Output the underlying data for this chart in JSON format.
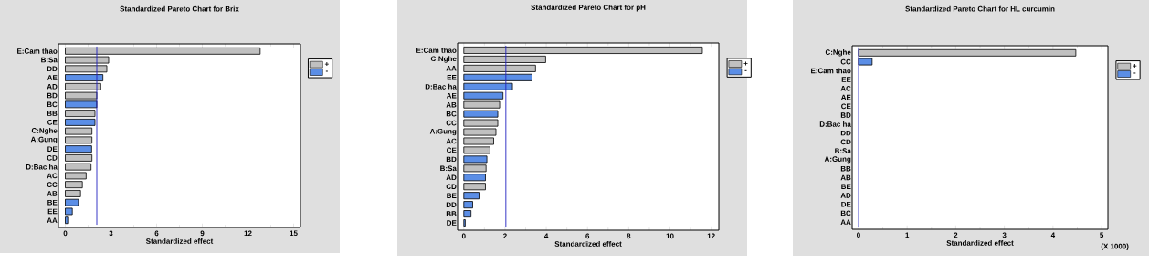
{
  "chart_data": [
    {
      "type": "bar",
      "orientation": "horizontal",
      "title": "Standardized Pareto Chart for Brix",
      "xlabel": "Standardized effect",
      "categories": [
        "E:Cam thao",
        "B:Sa",
        "DD",
        "AE",
        "AD",
        "BD",
        "BC",
        "BB",
        "CE",
        "C:Nghe",
        "A:Gung",
        "DE",
        "CD",
        "D:Bac ha",
        "AC",
        "CC",
        "AB",
        "BE",
        "EE",
        "AA"
      ],
      "series": [
        {
          "name": "+",
          "color": "#c0c0c0",
          "values": [
            12.8,
            2.85,
            2.73,
            null,
            2.33,
            2.07,
            null,
            1.95,
            null,
            1.75,
            1.75,
            null,
            1.75,
            1.69,
            1.37,
            1.12,
            1.0,
            null,
            null,
            null
          ]
        },
        {
          "name": "-",
          "color": "#5b8ee6",
          "values": [
            null,
            null,
            null,
            2.47,
            null,
            null,
            2.07,
            null,
            1.95,
            null,
            null,
            1.73,
            null,
            null,
            null,
            null,
            null,
            0.86,
            0.46,
            0.16
          ]
        }
      ],
      "xlim": [
        -0.45,
        15.45
      ],
      "xticks": [
        0,
        3,
        6,
        9,
        12,
        15
      ],
      "ref_lines": [
        {
          "axis": "x",
          "value": 2.07,
          "color": "#2020c0"
        }
      ],
      "legend": "top right"
    },
    {
      "type": "bar",
      "orientation": "horizontal",
      "title": "Standardized Pareto Chart for pH",
      "xlabel": "Standardized effect",
      "categories": [
        "E:Cam thao",
        "C:Nghe",
        "AA",
        "EE",
        "D:Bac ha",
        "AE",
        "AB",
        "BC",
        "CC",
        "A:Gung",
        "AC",
        "CE",
        "BD",
        "B:Sa",
        "AD",
        "CD",
        "BE",
        "DD",
        "BB",
        "DE"
      ],
      "series": [
        {
          "name": "+",
          "color": "#c0c0c0",
          "values": [
            11.57,
            3.97,
            3.48,
            null,
            null,
            null,
            1.74,
            null,
            1.65,
            1.56,
            1.45,
            1.27,
            null,
            1.08,
            null,
            1.05,
            null,
            null,
            null,
            null
          ]
        },
        {
          "name": "-",
          "color": "#5b8ee6",
          "values": [
            null,
            null,
            null,
            3.31,
            2.36,
            1.9,
            null,
            1.65,
            null,
            null,
            null,
            null,
            1.12,
            null,
            1.05,
            null,
            0.74,
            0.43,
            0.35,
            0.07
          ]
        }
      ],
      "xlim": [
        -0.3,
        12.37
      ],
      "xticks": [
        0,
        2,
        4,
        6,
        8,
        10,
        12
      ],
      "ref_lines": [
        {
          "axis": "x",
          "value": 2.04,
          "color": "#2020c0"
        }
      ],
      "legend": "top right"
    },
    {
      "type": "bar",
      "orientation": "horizontal",
      "title": "Standardized Pareto Chart for HL curcumin",
      "xlabel": "Standardized effect",
      "categories": [
        "C:Nghe",
        "CC",
        "E:Cam thao",
        "EE",
        "AC",
        "AE",
        "CE",
        "BD",
        "D:Bac ha",
        "DD",
        "CD",
        "B:Sa",
        "A:Gung",
        "BB",
        "AB",
        "BE",
        "AD",
        "DE",
        "BC",
        "AA"
      ],
      "series": [
        {
          "name": "+",
          "color": "#c0c0c0",
          "values": [
            4.47,
            null,
            null,
            null,
            null,
            null,
            null,
            null,
            null,
            null,
            null,
            null,
            null,
            null,
            null,
            null,
            null,
            null,
            null,
            null
          ]
        },
        {
          "name": "-",
          "color": "#5b8ee6",
          "values": [
            null,
            0.28,
            null,
            null,
            null,
            null,
            null,
            null,
            null,
            null,
            null,
            null,
            null,
            null,
            null,
            null,
            null,
            null,
            null,
            null
          ]
        }
      ],
      "xlim": [
        -0.13,
        5.13
      ],
      "xticks": [
        0,
        1,
        2,
        3,
        4,
        5
      ],
      "ref_lines": [
        {
          "axis": "x",
          "value": 0.002,
          "color": "#2020c0"
        }
      ],
      "annotations": [
        "(X 1000)"
      ],
      "legend": "top right"
    }
  ]
}
